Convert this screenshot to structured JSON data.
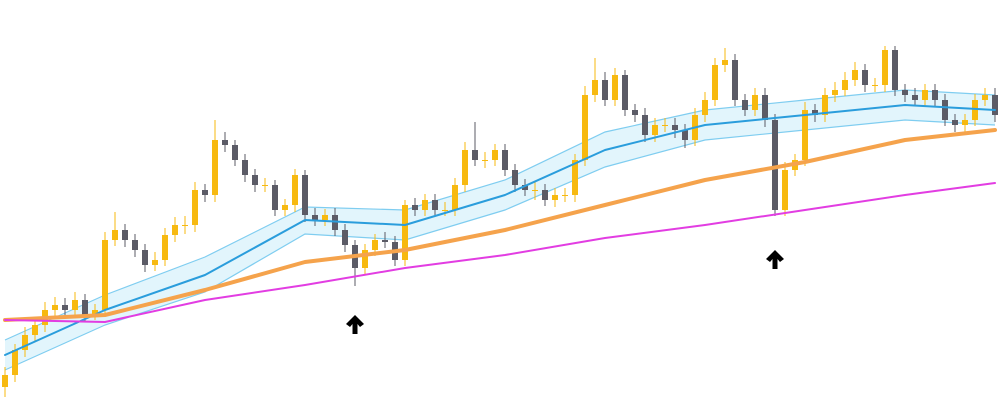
{
  "chart_data": {
    "type": "candlestick",
    "ylim": [
      0,
      412
    ],
    "up_color": "#f7b90f",
    "down_color": "#5b5b66",
    "open": [
      25,
      37,
      62,
      77,
      87,
      102,
      107,
      102,
      112,
      97,
      102,
      172,
      182,
      172,
      162,
      147,
      152,
      177,
      187,
      187,
      222,
      217,
      272,
      267,
      252,
      237,
      227,
      227,
      202,
      207,
      237,
      197,
      192,
      197,
      182,
      167,
      144,
      162,
      172,
      170,
      152,
      207,
      202,
      212,
      202,
      202,
      227,
      262,
      252,
      252,
      262,
      242,
      227,
      222,
      222,
      212,
      217,
      217,
      252,
      317,
      332,
      312,
      337,
      302,
      297,
      277,
      287,
      287,
      282,
      272,
      297,
      312,
      347,
      352,
      312,
      302,
      317,
      292,
      202,
      242,
      252,
      302,
      297,
      317,
      322,
      332,
      342,
      327,
      327,
      362,
      322,
      317,
      312,
      322,
      312,
      292,
      287,
      292,
      312,
      317
    ],
    "high": [
      45,
      68,
      85,
      95,
      110,
      115,
      114,
      120,
      118,
      108,
      180,
      200,
      188,
      178,
      168,
      160,
      184,
      195,
      196,
      230,
      228,
      292,
      280,
      272,
      258,
      243,
      234,
      232,
      213,
      243,
      242,
      204,
      203,
      204,
      188,
      172,
      168,
      178,
      180,
      176,
      212,
      214,
      218,
      218,
      210,
      234,
      270,
      290,
      260,
      268,
      268,
      248,
      233,
      230,
      228,
      224,
      224,
      258,
      326,
      354,
      340,
      344,
      342,
      308,
      304,
      294,
      294,
      294,
      288,
      304,
      320,
      354,
      364,
      358,
      318,
      324,
      324,
      298,
      250,
      258,
      310,
      308,
      324,
      330,
      340,
      350,
      348,
      334,
      366,
      366,
      328,
      324,
      328,
      328,
      318,
      298,
      298,
      318,
      324,
      324
    ],
    "low": [
      15,
      30,
      55,
      70,
      80,
      95,
      96,
      96,
      90,
      92,
      96,
      166,
      165,
      155,
      140,
      141,
      146,
      170,
      178,
      180,
      210,
      210,
      260,
      246,
      230,
      220,
      220,
      196,
      196,
      200,
      190,
      186,
      186,
      176,
      160,
      126,
      138,
      156,
      164,
      146,
      146,
      196,
      196,
      196,
      196,
      196,
      220,
      246,
      244,
      246,
      236,
      220,
      216,
      212,
      206,
      205,
      210,
      210,
      246,
      310,
      306,
      306,
      296,
      290,
      270,
      270,
      280,
      274,
      264,
      266,
      290,
      306,
      340,
      306,
      296,
      296,
      285,
      196,
      196,
      236,
      246,
      290,
      290,
      310,
      316,
      326,
      320,
      320,
      320,
      316,
      310,
      306,
      306,
      306,
      286,
      280,
      280,
      286,
      306,
      290
    ],
    "close": [
      37,
      62,
      77,
      87,
      102,
      107,
      102,
      112,
      97,
      102,
      172,
      182,
      172,
      162,
      147,
      152,
      177,
      187,
      187,
      222,
      217,
      272,
      267,
      252,
      237,
      227,
      227,
      202,
      207,
      237,
      197,
      192,
      197,
      182,
      167,
      144,
      162,
      172,
      170,
      152,
      207,
      202,
      212,
      202,
      202,
      227,
      262,
      252,
      252,
      262,
      242,
      227,
      222,
      222,
      212,
      217,
      217,
      252,
      317,
      332,
      312,
      337,
      302,
      297,
      277,
      287,
      287,
      282,
      272,
      297,
      312,
      347,
      352,
      312,
      302,
      317,
      292,
      202,
      242,
      252,
      302,
      297,
      317,
      322,
      332,
      342,
      327,
      327,
      362,
      322,
      317,
      312,
      322,
      312,
      292,
      287,
      292,
      312,
      317,
      297
    ],
    "bands": {
      "fill": "#e2f5fc",
      "color": "#7fcdf0",
      "x": [
        0,
        10,
        20,
        30,
        40,
        50,
        60,
        70,
        80,
        90,
        99
      ],
      "upper": [
        72,
        117,
        155,
        205,
        202,
        232,
        280,
        302,
        312,
        322,
        317
      ],
      "lower": [
        42,
        87,
        120,
        178,
        172,
        202,
        245,
        272,
        282,
        292,
        287
      ]
    },
    "series": [
      {
        "color": "#2a9ddc",
        "width": 2,
        "x": [
          0,
          10,
          20,
          30,
          40,
          50,
          60,
          70,
          80,
          90,
          99
        ],
        "values": [
          57,
          102,
          137,
          192,
          187,
          217,
          262,
          287,
          297,
          307,
          302
        ]
      },
      {
        "color": "#f5a34c",
        "width": 4,
        "x": [
          0,
          10,
          20,
          30,
          40,
          50,
          60,
          70,
          80,
          90,
          99
        ],
        "values": [
          92,
          97,
          122,
          150,
          162,
          182,
          207,
          232,
          250,
          272,
          282
        ]
      },
      {
        "color": "#e23de2",
        "width": 2,
        "x": [
          0,
          10,
          20,
          30,
          40,
          50,
          60,
          70,
          80,
          90,
          99
        ],
        "values": [
          92,
          90,
          112,
          127,
          144,
          157,
          174,
          187,
          202,
          217,
          229
        ]
      }
    ],
    "arrows": [
      {
        "index": 35,
        "value": 97,
        "color": "#000000"
      },
      {
        "index": 77,
        "value": 162,
        "color": "#000000"
      }
    ]
  }
}
